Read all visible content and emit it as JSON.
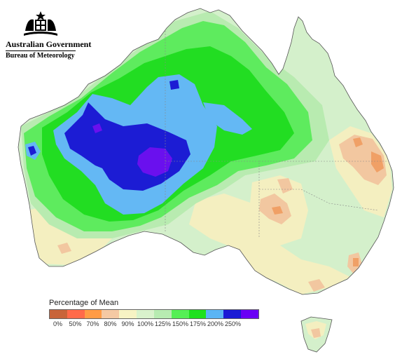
{
  "branding": {
    "crest_icon": "coat-of-arms-icon",
    "government": "Australian Government",
    "agency": "Bureau of Meteorology"
  },
  "legend": {
    "title": "Percentage of Mean",
    "labels": [
      "0%",
      "50%",
      "70%",
      "80%",
      "90%",
      "100%",
      "125%",
      "150%",
      "175%",
      "200%",
      "250%"
    ],
    "colors": [
      "#c8643a",
      "#ff6a4a",
      "#ff9b45",
      "#f5c9a3",
      "#f7f3c4",
      "#d9f2cc",
      "#b7ebb1",
      "#55ef55",
      "#1ee11e",
      "#5ab5f5",
      "#1a1ad5",
      "#6a00f5"
    ]
  },
  "map_colors": {
    "land_base": "#d4f0cb",
    "near_mean": "#f4efc0",
    "dry_light": "#f2c7a0",
    "dry_mid": "#f0a066",
    "wet_125": "#b8ebb0",
    "wet_150": "#5eeb5e",
    "wet_175": "#22dd22",
    "wet_200": "#64b8f4",
    "wet_250": "#1c1cd4",
    "wet_max": "#6a10ee",
    "coast": "#555555"
  }
}
